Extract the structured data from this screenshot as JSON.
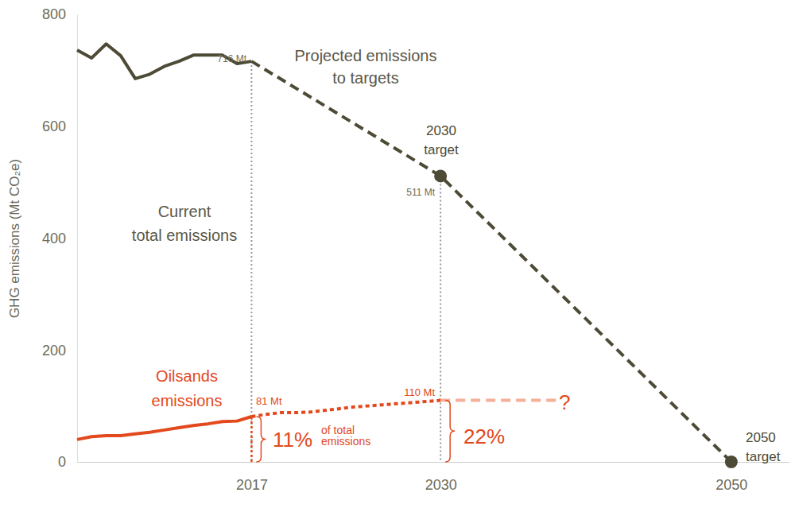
{
  "chart_data": {
    "type": "line",
    "y_label": "GHG emissions (Mt CO₂e)",
    "xlim": [
      2005,
      2054
    ],
    "ylim": [
      0,
      800
    ],
    "xticks": [
      2017,
      2030,
      2050
    ],
    "yticks": [
      0,
      200,
      400,
      600,
      800
    ],
    "grid": false,
    "series": [
      {
        "color": "#4d4a36",
        "line_style": "solid",
        "x": [
          2005,
          2006,
          2007,
          2008,
          2009,
          2010,
          2011,
          2012,
          2013,
          2014,
          2015,
          2016,
          2017
        ],
        "values": [
          736,
          722,
          747,
          726,
          685,
          693,
          707,
          716,
          727,
          727,
          727,
          712,
          716
        ]
      },
      {
        "color": "#4d4a36",
        "line_style": "dashed",
        "x": [
          2017,
          2030,
          2050
        ],
        "values": [
          716,
          511,
          0
        ]
      },
      {
        "color": "#4d4a36",
        "line_style": "none",
        "marker": "circle",
        "x": [
          2030,
          2050
        ],
        "values": [
          511,
          0
        ]
      },
      {
        "color": "#e2491d",
        "line_style": "solid",
        "x": [
          2005,
          2006,
          2007,
          2008,
          2009,
          2010,
          2011,
          2012,
          2013,
          2014,
          2015,
          2016,
          2017
        ],
        "values": [
          40,
          45,
          47,
          47,
          50,
          53,
          57,
          61,
          65,
          68,
          72,
          73,
          81
        ]
      },
      {
        "color": "#e2491d",
        "line_style": "dotted",
        "x": [
          2017,
          2018,
          2019,
          2020,
          2021,
          2022,
          2023,
          2024,
          2025,
          2026,
          2027,
          2028,
          2029,
          2030
        ],
        "values": [
          81,
          85,
          88,
          88,
          89,
          92,
          95,
          98,
          100,
          102,
          104,
          106,
          108,
          110
        ]
      },
      {
        "color": "#f5b09a",
        "line_style": "dashed",
        "x": [
          2030,
          2038
        ],
        "values": [
          110,
          110
        ]
      }
    ],
    "annotations": [
      {
        "text": "716 Mt",
        "color": "#6b6b5b"
      },
      {
        "lines": [
          "Projected emissions",
          "to targets"
        ],
        "color": "#5a5747"
      },
      {
        "lines": [
          "2030",
          "target"
        ],
        "color": "#4d4a36"
      },
      {
        "text": "511 Mt",
        "color": "#6b6b5b"
      },
      {
        "lines": [
          "Current",
          "total emissions"
        ],
        "color": "#5a5747"
      },
      {
        "lines": [
          "Oilsands",
          "emissions"
        ],
        "color": "#e2491d"
      },
      {
        "text": "81 Mt",
        "color": "#e2491d"
      },
      {
        "text": "110 Mt",
        "color": "#e2491d"
      },
      {
        "text": "11%",
        "color": "#e2491d"
      },
      {
        "lines": [
          "of total",
          "emissions"
        ],
        "color": "#e2491d"
      },
      {
        "text": "22%",
        "color": "#e2491d"
      },
      {
        "text": "?",
        "color": "#e2491d"
      },
      {
        "lines": [
          "2050",
          "target"
        ],
        "color": "#4d4a36"
      }
    ]
  }
}
